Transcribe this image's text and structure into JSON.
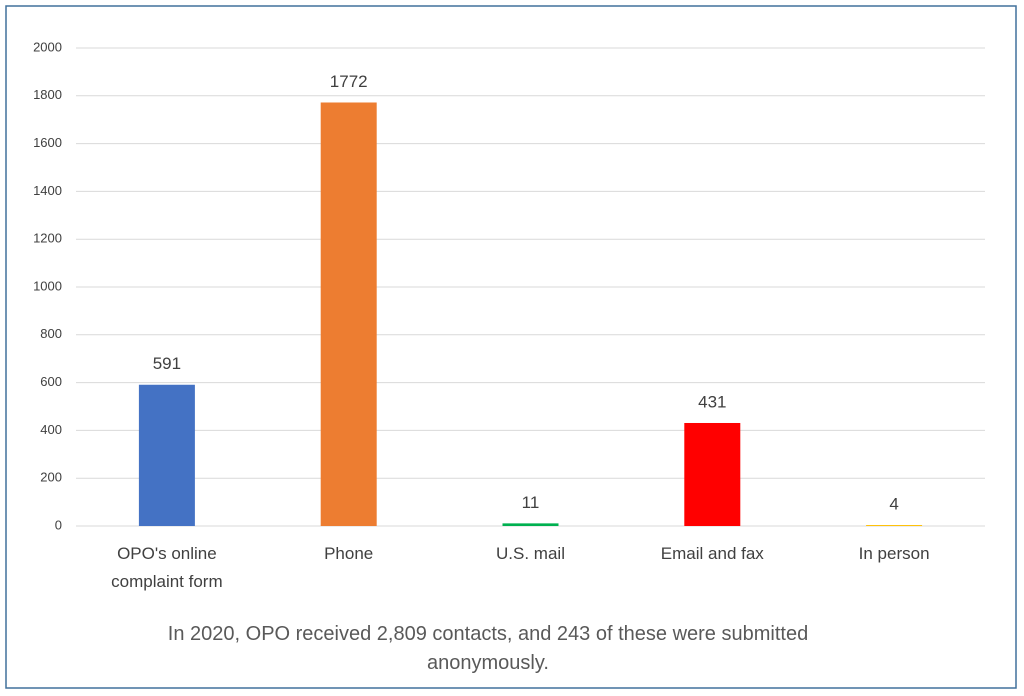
{
  "chart_data": {
    "type": "bar",
    "categories": [
      "OPO's online complaint form",
      "Phone",
      "U.S. mail",
      "Email and fax",
      "In person"
    ],
    "values": [
      591,
      1772,
      11,
      431,
      4
    ],
    "colors": [
      "#4472c4",
      "#ed7d31",
      "#00b050",
      "#ff0000",
      "#ffc000"
    ],
    "ylim": [
      0,
      2000
    ],
    "yticks": [
      0,
      200,
      400,
      600,
      800,
      1000,
      1200,
      1400,
      1600,
      1800,
      2000
    ],
    "grid": true,
    "caption": "In 2020, OPO received 2,809 contacts, and 243 of these were submitted anonymously."
  }
}
